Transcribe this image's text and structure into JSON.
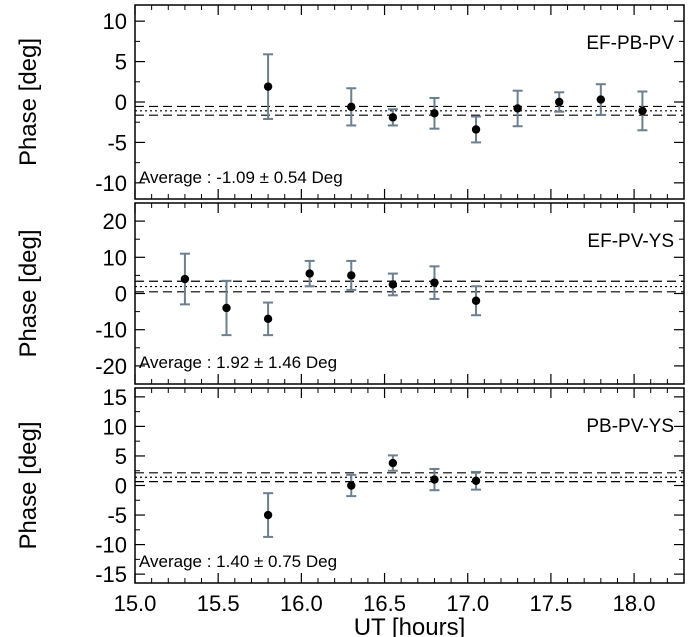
{
  "colors": {
    "errorbar": "#6b7f8e",
    "point": "#000000",
    "frame": "#000000",
    "refline": "#000000"
  },
  "chart_data": [
    {
      "type": "scatter",
      "panel_label": "EF-PB-PV",
      "ylabel": "Phase [deg]",
      "xlabel": "",
      "ylim": [
        -12,
        12
      ],
      "xlim": [
        15.0,
        18.3
      ],
      "yticks": [
        -10,
        -5,
        0,
        5,
        10
      ],
      "ytick_labels": [
        "-10",
        "-5",
        "0",
        "5",
        "10"
      ],
      "average_text": "Average :  -1.09 ± 0.54 Deg",
      "average": -1.09,
      "average_err": 0.54,
      "points": [
        {
          "x": 15.8,
          "y": 1.9,
          "err": 4.0
        },
        {
          "x": 16.3,
          "y": -0.6,
          "err": 2.3
        },
        {
          "x": 16.55,
          "y": -1.9,
          "err": 1.0
        },
        {
          "x": 16.8,
          "y": -1.4,
          "err": 1.9
        },
        {
          "x": 17.05,
          "y": -3.4,
          "err": 1.6
        },
        {
          "x": 17.3,
          "y": -0.8,
          "err": 2.2
        },
        {
          "x": 17.55,
          "y": 0.0,
          "err": 1.2
        },
        {
          "x": 17.8,
          "y": 0.3,
          "err": 1.9
        },
        {
          "x": 18.05,
          "y": -1.1,
          "err": 2.4
        }
      ]
    },
    {
      "type": "scatter",
      "panel_label": "EF-PV-YS",
      "ylabel": "Phase [deg]",
      "xlabel": "",
      "ylim": [
        -25,
        25
      ],
      "xlim": [
        15.0,
        18.3
      ],
      "yticks": [
        -20,
        -10,
        0,
        10,
        20
      ],
      "ytick_labels": [
        "-20",
        "-10",
        "0",
        "10",
        "20"
      ],
      "average_text": "Average :  1.92 ± 1.46 Deg",
      "average": 1.92,
      "average_err": 1.46,
      "points": [
        {
          "x": 15.3,
          "y": 4.0,
          "err": 7.0
        },
        {
          "x": 15.55,
          "y": -4.0,
          "err": 7.5
        },
        {
          "x": 15.8,
          "y": -7.0,
          "err": 4.5
        },
        {
          "x": 16.05,
          "y": 5.5,
          "err": 3.5
        },
        {
          "x": 16.3,
          "y": 5.0,
          "err": 4.0
        },
        {
          "x": 16.55,
          "y": 2.5,
          "err": 3.0
        },
        {
          "x": 16.8,
          "y": 3.0,
          "err": 4.5
        },
        {
          "x": 17.05,
          "y": -2.0,
          "err": 4.0
        }
      ]
    },
    {
      "type": "scatter",
      "panel_label": "PB-PV-YS",
      "ylabel": "Phase [deg]",
      "xlabel": "UT [hours]",
      "ylim": [
        -16.5,
        16.5
      ],
      "xlim": [
        15.0,
        18.3
      ],
      "yticks": [
        -15,
        -10,
        -5,
        0,
        5,
        10,
        15
      ],
      "ytick_labels": [
        "-15",
        "-10",
        "-5",
        "0",
        "5",
        "10",
        "15"
      ],
      "xticks": [
        15.0,
        15.5,
        16.0,
        16.5,
        17.0,
        17.5,
        18.0
      ],
      "xtick_labels": [
        "15.0",
        "15.5",
        "16.0",
        "16.5",
        "17.0",
        "17.5",
        "18.0"
      ],
      "average_text": "Average :  1.40 ± 0.75 Deg",
      "average": 1.4,
      "average_err": 0.75,
      "points": [
        {
          "x": 15.8,
          "y": -5.0,
          "err": 3.7
        },
        {
          "x": 16.3,
          "y": 0.0,
          "err": 1.8
        },
        {
          "x": 16.55,
          "y": 3.8,
          "err": 1.3
        },
        {
          "x": 16.8,
          "y": 1.0,
          "err": 1.8
        },
        {
          "x": 17.05,
          "y": 0.8,
          "err": 1.5
        }
      ]
    }
  ]
}
